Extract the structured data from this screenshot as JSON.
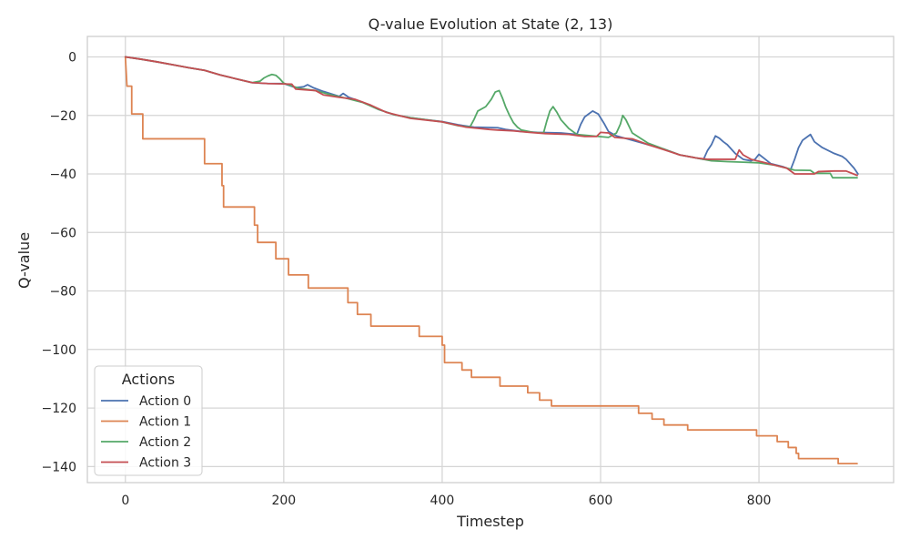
{
  "chart_data": {
    "type": "line",
    "title": "Q-value Evolution at State (2, 13)",
    "xlabel": "Timestep",
    "ylabel": "Q-value",
    "xlim": [
      -48,
      970
    ],
    "ylim": [
      -145.5,
      7
    ],
    "xticks": [
      0,
      200,
      400,
      600,
      800
    ],
    "yticks": [
      0,
      -20,
      -40,
      -60,
      -80,
      -100,
      -120,
      -140
    ],
    "tick_labels_x": [
      "0",
      "200",
      "400",
      "600",
      "800"
    ],
    "tick_labels_y": [
      "0",
      "−20",
      "−40",
      "−60",
      "−80",
      "−100",
      "−120",
      "−140"
    ],
    "grid": true,
    "legend": {
      "title": "Actions",
      "placement": "lower-left"
    },
    "series": [
      {
        "name": "Action 0",
        "color": "#4c72b0",
        "points": [
          [
            0,
            0
          ],
          [
            20,
            -0.8
          ],
          [
            40,
            -1.7
          ],
          [
            60,
            -2.7
          ],
          [
            80,
            -3.7
          ],
          [
            100,
            -4.6
          ],
          [
            120,
            -6.2
          ],
          [
            140,
            -7.5
          ],
          [
            160,
            -8.8
          ],
          [
            180,
            -9.1
          ],
          [
            200,
            -9.1
          ],
          [
            215,
            -10.5
          ],
          [
            225,
            -10.2
          ],
          [
            230,
            -9.5
          ],
          [
            237,
            -10.5
          ],
          [
            250,
            -11.8
          ],
          [
            270,
            -13.5
          ],
          [
            275,
            -12.5
          ],
          [
            282,
            -13.8
          ],
          [
            300,
            -15.5
          ],
          [
            320,
            -18
          ],
          [
            340,
            -19.8
          ],
          [
            360,
            -20.8
          ],
          [
            380,
            -21.5
          ],
          [
            400,
            -22.1
          ],
          [
            420,
            -23.2
          ],
          [
            440,
            -24
          ],
          [
            470,
            -24.2
          ],
          [
            480,
            -24.8
          ],
          [
            500,
            -25.5
          ],
          [
            520,
            -25.8
          ],
          [
            550,
            -26
          ],
          [
            570,
            -26.5
          ],
          [
            575,
            -23
          ],
          [
            580,
            -20.5
          ],
          [
            585,
            -19.5
          ],
          [
            590,
            -18.5
          ],
          [
            597,
            -19.5
          ],
          [
            605,
            -23
          ],
          [
            610,
            -25.5
          ],
          [
            620,
            -27
          ],
          [
            640,
            -28.5
          ],
          [
            660,
            -30
          ],
          [
            680,
            -31.5
          ],
          [
            700,
            -33.5
          ],
          [
            720,
            -34.5
          ],
          [
            730,
            -35
          ],
          [
            735,
            -32
          ],
          [
            740,
            -30
          ],
          [
            745,
            -27
          ],
          [
            750,
            -27.8
          ],
          [
            755,
            -29
          ],
          [
            760,
            -30
          ],
          [
            770,
            -33
          ],
          [
            780,
            -35
          ],
          [
            790,
            -35.5
          ],
          [
            795,
            -35
          ],
          [
            800,
            -33.3
          ],
          [
            808,
            -35
          ],
          [
            815,
            -36.5
          ],
          [
            830,
            -37.5
          ],
          [
            840,
            -38.5
          ],
          [
            845,
            -35
          ],
          [
            850,
            -31
          ],
          [
            855,
            -28.5
          ],
          [
            860,
            -27.5
          ],
          [
            865,
            -26.5
          ],
          [
            870,
            -29
          ],
          [
            880,
            -31
          ],
          [
            895,
            -33
          ],
          [
            905,
            -34
          ],
          [
            910,
            -35
          ],
          [
            920,
            -38
          ],
          [
            925,
            -40
          ]
        ]
      },
      {
        "name": "Action 1",
        "color": "#dd8452",
        "points": [
          [
            0,
            0
          ],
          [
            2,
            -10
          ],
          [
            8,
            -10
          ],
          [
            8,
            -19.5
          ],
          [
            22,
            -19.5
          ],
          [
            22,
            -28
          ],
          [
            100,
            -28
          ],
          [
            100,
            -36.5
          ],
          [
            122,
            -36.5
          ],
          [
            122,
            -44
          ],
          [
            124,
            -44
          ],
          [
            124,
            -51.3
          ],
          [
            163,
            -51.3
          ],
          [
            163,
            -57.5
          ],
          [
            167,
            -57.5
          ],
          [
            167,
            -63.4
          ],
          [
            190,
            -63.4
          ],
          [
            190,
            -69
          ],
          [
            206,
            -69
          ],
          [
            206,
            -74.5
          ],
          [
            231,
            -74.5
          ],
          [
            231,
            -79
          ],
          [
            281,
            -79
          ],
          [
            281,
            -84
          ],
          [
            293,
            -84
          ],
          [
            293,
            -88
          ],
          [
            310,
            -88
          ],
          [
            310,
            -92
          ],
          [
            371,
            -92
          ],
          [
            371,
            -95.5
          ],
          [
            400,
            -95.5
          ],
          [
            400,
            -98.5
          ],
          [
            403,
            -98.5
          ],
          [
            403,
            -104.5
          ],
          [
            425,
            -104.5
          ],
          [
            425,
            -107
          ],
          [
            437,
            -107
          ],
          [
            437,
            -109.5
          ],
          [
            473,
            -109.5
          ],
          [
            473,
            -112.5
          ],
          [
            508,
            -112.5
          ],
          [
            508,
            -114.8
          ],
          [
            523,
            -114.8
          ],
          [
            523,
            -117.3
          ],
          [
            538,
            -117.3
          ],
          [
            538,
            -119.3
          ],
          [
            648,
            -119.3
          ],
          [
            648,
            -121.8
          ],
          [
            665,
            -121.8
          ],
          [
            665,
            -123.8
          ],
          [
            680,
            -123.8
          ],
          [
            680,
            -125.8
          ],
          [
            710,
            -125.8
          ],
          [
            710,
            -127.5
          ],
          [
            797,
            -127.5
          ],
          [
            797,
            -129.5
          ],
          [
            823,
            -129.5
          ],
          [
            823,
            -131.5
          ],
          [
            837,
            -131.5
          ],
          [
            837,
            -133.5
          ],
          [
            847,
            -133.5
          ],
          [
            847,
            -135.5
          ],
          [
            850,
            -135.5
          ],
          [
            850,
            -137.3
          ],
          [
            900,
            -137.3
          ],
          [
            900,
            -139
          ],
          [
            924,
            -139
          ]
        ]
      },
      {
        "name": "Action 2",
        "color": "#55a868",
        "points": [
          [
            0,
            0
          ],
          [
            20,
            -0.8
          ],
          [
            40,
            -1.7
          ],
          [
            60,
            -2.7
          ],
          [
            80,
            -3.7
          ],
          [
            100,
            -4.6
          ],
          [
            120,
            -6.2
          ],
          [
            140,
            -7.5
          ],
          [
            160,
            -8.8
          ],
          [
            170,
            -8.3
          ],
          [
            175,
            -7.2
          ],
          [
            180,
            -6.5
          ],
          [
            185,
            -6
          ],
          [
            190,
            -6.3
          ],
          [
            195,
            -7.5
          ],
          [
            200,
            -9
          ],
          [
            220,
            -10.8
          ],
          [
            240,
            -11.5
          ],
          [
            260,
            -13
          ],
          [
            280,
            -14.2
          ],
          [
            300,
            -15.6
          ],
          [
            320,
            -18
          ],
          [
            340,
            -19.8
          ],
          [
            360,
            -20.8
          ],
          [
            380,
            -21.5
          ],
          [
            400,
            -22.2
          ],
          [
            420,
            -23.5
          ],
          [
            435,
            -24
          ],
          [
            440,
            -21.5
          ],
          [
            445,
            -18.5
          ],
          [
            455,
            -17
          ],
          [
            462,
            -14.5
          ],
          [
            467,
            -12
          ],
          [
            472,
            -11.5
          ],
          [
            476,
            -14
          ],
          [
            480,
            -17
          ],
          [
            485,
            -20
          ],
          [
            490,
            -22.5
          ],
          [
            495,
            -24
          ],
          [
            500,
            -25
          ],
          [
            515,
            -25.8
          ],
          [
            528,
            -26
          ],
          [
            532,
            -22
          ],
          [
            536,
            -18.5
          ],
          [
            540,
            -17
          ],
          [
            545,
            -19
          ],
          [
            550,
            -21.5
          ],
          [
            555,
            -23
          ],
          [
            560,
            -24.5
          ],
          [
            570,
            -26.5
          ],
          [
            590,
            -27
          ],
          [
            610,
            -27.5
          ],
          [
            620,
            -26
          ],
          [
            625,
            -23
          ],
          [
            628,
            -20
          ],
          [
            632,
            -21.5
          ],
          [
            640,
            -26
          ],
          [
            660,
            -29.5
          ],
          [
            680,
            -31.5
          ],
          [
            700,
            -33.5
          ],
          [
            720,
            -34.5
          ],
          [
            740,
            -35.5
          ],
          [
            760,
            -35.8
          ],
          [
            780,
            -36
          ],
          [
            800,
            -36.2
          ],
          [
            820,
            -37
          ],
          [
            835,
            -38
          ],
          [
            845,
            -38.7
          ],
          [
            865,
            -38.8
          ],
          [
            870,
            -39.8
          ],
          [
            890,
            -39.8
          ],
          [
            893,
            -41.3
          ],
          [
            924,
            -41.3
          ]
        ]
      },
      {
        "name": "Action 3",
        "color": "#c44e52",
        "points": [
          [
            0,
            0
          ],
          [
            20,
            -0.8
          ],
          [
            40,
            -1.7
          ],
          [
            60,
            -2.7
          ],
          [
            80,
            -3.7
          ],
          [
            100,
            -4.6
          ],
          [
            120,
            -6.2
          ],
          [
            140,
            -7.5
          ],
          [
            160,
            -8.8
          ],
          [
            180,
            -9.1
          ],
          [
            210,
            -9.3
          ],
          [
            215,
            -11
          ],
          [
            240,
            -11.5
          ],
          [
            250,
            -13
          ],
          [
            270,
            -13.8
          ],
          [
            290,
            -14.5
          ],
          [
            310,
            -16.5
          ],
          [
            330,
            -19
          ],
          [
            360,
            -21
          ],
          [
            400,
            -22.2
          ],
          [
            430,
            -24
          ],
          [
            460,
            -24.8
          ],
          [
            470,
            -25
          ],
          [
            490,
            -25.3
          ],
          [
            510,
            -25.8
          ],
          [
            530,
            -26.2
          ],
          [
            560,
            -26.5
          ],
          [
            580,
            -27.2
          ],
          [
            595,
            -27.2
          ],
          [
            600,
            -25.8
          ],
          [
            610,
            -26
          ],
          [
            618,
            -27.5
          ],
          [
            640,
            -28
          ],
          [
            660,
            -30
          ],
          [
            680,
            -31.7
          ],
          [
            700,
            -33.5
          ],
          [
            720,
            -34.5
          ],
          [
            735,
            -35
          ],
          [
            770,
            -35
          ],
          [
            775,
            -31.8
          ],
          [
            780,
            -33.5
          ],
          [
            790,
            -35
          ],
          [
            805,
            -36
          ],
          [
            820,
            -37
          ],
          [
            835,
            -38
          ],
          [
            845,
            -40
          ],
          [
            870,
            -40
          ],
          [
            875,
            -39.2
          ],
          [
            895,
            -39
          ],
          [
            910,
            -39
          ],
          [
            924,
            -40.5
          ]
        ]
      }
    ]
  }
}
